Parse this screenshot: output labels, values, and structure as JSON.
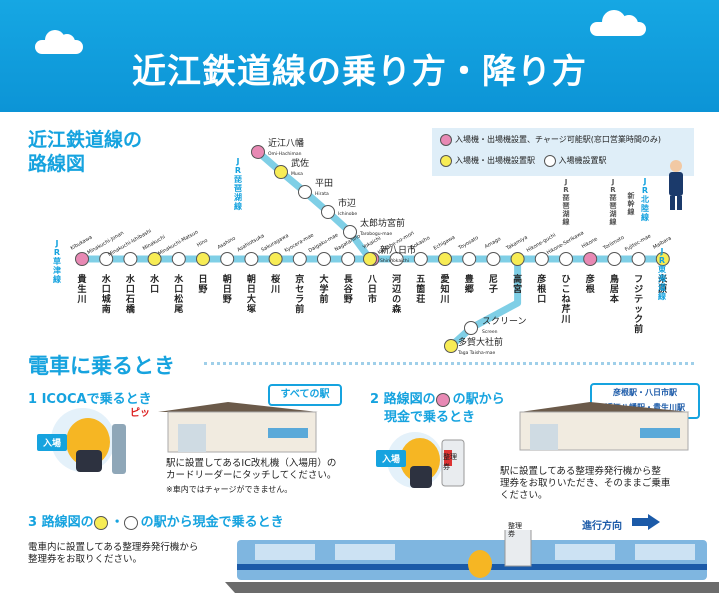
{
  "header": {
    "title": "近江鉄道線の乗り方・降り方"
  },
  "map": {
    "title_line1": "近江鉄道線の",
    "title_line2": "路線図",
    "legend": {
      "pink": "入場機・出場機設置、チャージ可能駅(窓口営業時間のみ)",
      "yellow": "入場機・出場機設置駅",
      "white": "入場機設置駅"
    },
    "connections": {
      "kusatsu": "JR草津線",
      "biwako_left": "JR琵琶湖線",
      "biwako_mid": "JR琵琶湖線",
      "biwako_right": "JR琵琶湖線",
      "hokuriku": "JR北陸線",
      "shinkansen": "新幹線",
      "tokaido": "JR東海道線"
    },
    "stations": [
      {
        "name": "貴生川",
        "roman": "Kibukawa",
        "type": "pink"
      },
      {
        "name": "水口城南",
        "roman": "Minakuchi-Jonan",
        "type": "white"
      },
      {
        "name": "水口石橋",
        "roman": "Minakuchi-Ishibashi",
        "type": "white"
      },
      {
        "name": "水口",
        "roman": "Minakuchi",
        "type": "yellow"
      },
      {
        "name": "水口松尾",
        "roman": "Minakuchi-Matsuo",
        "type": "white"
      },
      {
        "name": "日野",
        "roman": "Hino",
        "type": "yellow"
      },
      {
        "name": "朝日野",
        "roman": "Asahino",
        "type": "white"
      },
      {
        "name": "朝日大塚",
        "roman": "Asahiotsuka",
        "type": "white"
      },
      {
        "name": "桜川",
        "roman": "Sakuragawa",
        "type": "yellow"
      },
      {
        "name": "京セラ前",
        "roman": "Kyocera-mae",
        "type": "white"
      },
      {
        "name": "大学前",
        "roman": "Daigaku-mae",
        "type": "white"
      },
      {
        "name": "長谷野",
        "roman": "Nagatanino",
        "type": "white"
      },
      {
        "name": "八日市",
        "roman": "Yokaichi",
        "type": "pink"
      },
      {
        "name": "河辺の森",
        "roman": "Kawabe-no-mori",
        "type": "white"
      },
      {
        "name": "五箇荘",
        "roman": "Gokasho",
        "type": "white"
      },
      {
        "name": "愛知川",
        "roman": "Echigawa",
        "type": "yellow"
      },
      {
        "name": "豊郷",
        "roman": "Toyosato",
        "type": "white"
      },
      {
        "name": "尼子",
        "roman": "Amago",
        "type": "white"
      },
      {
        "name": "高宮",
        "roman": "Takamiya",
        "type": "yellow"
      },
      {
        "name": "彦根口",
        "roman": "Hikone-guchi",
        "type": "white"
      },
      {
        "name": "ひこね芹川",
        "roman": "Hikone-Serikawa",
        "type": "white"
      },
      {
        "name": "彦根",
        "roman": "Hikone",
        "type": "pink"
      },
      {
        "name": "鳥居本",
        "roman": "Toriimoto",
        "type": "white"
      },
      {
        "name": "フジテック前",
        "roman": "Fujitec-mae",
        "type": "white"
      },
      {
        "name": "米原",
        "roman": "Maibara",
        "type": "yellow"
      }
    ],
    "branch_yokaichi": [
      {
        "name": "近江八幡",
        "roman": "Omi-Hachiman",
        "type": "pink"
      },
      {
        "name": "武佐",
        "roman": "Musa",
        "type": "yellow"
      },
      {
        "name": "平田",
        "roman": "Hirata",
        "type": "white"
      },
      {
        "name": "市辺",
        "roman": "Ichinobe",
        "type": "white"
      },
      {
        "name": "太郎坊宮前",
        "roman": "Tarobogu-mae",
        "type": "white"
      },
      {
        "name": "新八日市",
        "roman": "Shin-Yokaichi",
        "type": "yellow"
      }
    ],
    "branch_taga": [
      {
        "name": "スクリーン",
        "roman": "Screen",
        "type": "white"
      },
      {
        "name": "多賀大社前",
        "roman": "Taga Taisha-mae",
        "type": "yellow"
      }
    ]
  },
  "boarding": {
    "section_title": "電車に乗るとき",
    "step1": {
      "title": "1 ICOCAで乗るとき",
      "callout": "すべての駅",
      "tag": "入場",
      "beep": "ピッ",
      "desc_line1": "駅に設置してあるIC改札機（入場用）の",
      "desc_line2": "カードリーダーにタッチしてください。",
      "note": "※車内ではチャージができません。"
    },
    "step2": {
      "title_line1": "2 路線図の",
      "title_line1b": "の駅から",
      "title_line2": "現金で乗るとき",
      "callout_line1": "彦根駅・八日市駅",
      "callout_line2": "近江八幡駅・貴生川駅",
      "tag": "入場",
      "machine_label": "整理券",
      "desc_line1": "駅に設置してある整理券発行機から整",
      "desc_line2": "理券をお取りいただき、そのままご乗車",
      "desc_line3": "ください。"
    },
    "step3": {
      "title_a": "3 路線図の",
      "title_b": "・",
      "title_c": "の駅から現金で乗るとき",
      "desc_line1": "電車内に設置してある整理券発行機から",
      "desc_line2": "整理券をお取りください。",
      "direction": "進行方向",
      "machine_label": "整理券"
    }
  },
  "colors": {
    "accent": "#16a3df",
    "line": "#7fcfe6",
    "pink": "#e889b4",
    "yellow": "#f7ec55",
    "navy": "#1b5aa8"
  }
}
